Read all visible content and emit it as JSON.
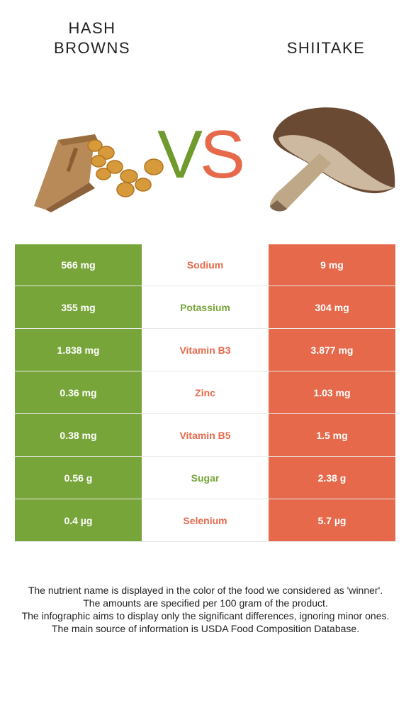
{
  "header": {
    "left_title_line1": "HASH",
    "left_title_line2": "BROWNS",
    "right_title": "SHIITAKE",
    "vs_v": "V",
    "vs_s": "S"
  },
  "colors": {
    "hash_browns": "#78a53a",
    "shiitake": "#e5694a"
  },
  "rows": [
    {
      "nutrient": "Sodium",
      "hash_browns": "566 mg",
      "shiitake": "9 mg",
      "winner": "shiitake"
    },
    {
      "nutrient": "Potassium",
      "hash_browns": "355 mg",
      "shiitake": "304 mg",
      "winner": "hash_browns"
    },
    {
      "nutrient": "Vitamin B3",
      "hash_browns": "1.838 mg",
      "shiitake": "3.877 mg",
      "winner": "shiitake"
    },
    {
      "nutrient": "Zinc",
      "hash_browns": "0.36 mg",
      "shiitake": "1.03 mg",
      "winner": "shiitake"
    },
    {
      "nutrient": "Vitamin B5",
      "hash_browns": "0.38 mg",
      "shiitake": "1.5 mg",
      "winner": "shiitake"
    },
    {
      "nutrient": "Sugar",
      "hash_browns": "0.56 g",
      "shiitake": "2.38 g",
      "winner": "hash_browns"
    },
    {
      "nutrient": "Selenium",
      "hash_browns": "0.4 µg",
      "shiitake": "5.7 µg",
      "winner": "shiitake"
    }
  ],
  "notes": [
    "The nutrient name is displayed in the color of the food we considered as 'winner'.",
    "The amounts are specified per 100 gram of the product.",
    "The infographic aims to display only the significant differences, ignoring minor ones.",
    "The main source of information is USDA Food Composition Database."
  ]
}
